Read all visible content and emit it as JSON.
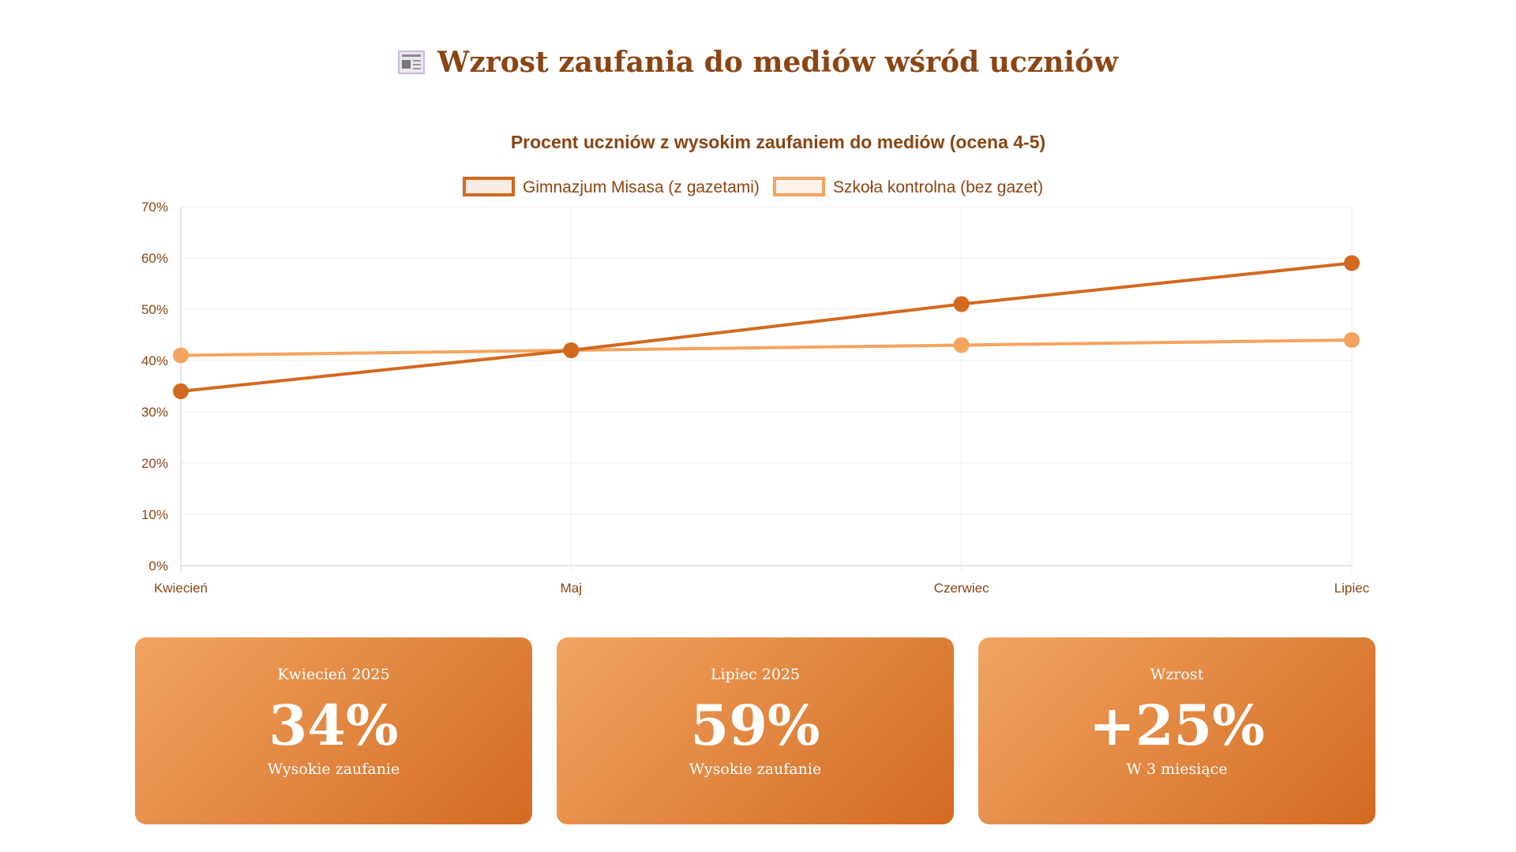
{
  "header": {
    "icon": "newspaper-icon",
    "title": "Wzrost zaufania do mediów wśród uczniów"
  },
  "chart_data": {
    "type": "line",
    "title": "Procent uczniów z wysokim zaufaniem do mediów (ocena 4-5)",
    "categories": [
      "Kwiecień",
      "Maj",
      "Czerwiec",
      "Lipiec"
    ],
    "series": [
      {
        "name": "Gimnazjum Misasa (z gazetami)",
        "values": [
          34,
          42,
          51,
          59
        ],
        "color": "#d2691e"
      },
      {
        "name": "Szkoła kontrolna (bez gazet)",
        "values": [
          41,
          42,
          43,
          44
        ],
        "color": "#f4a460"
      }
    ],
    "ylim": [
      0,
      70
    ],
    "yticks": [
      "0%",
      "10%",
      "20%",
      "30%",
      "40%",
      "50%",
      "60%",
      "70%"
    ],
    "legend": "top",
    "grid": true
  },
  "cards": [
    {
      "label": "Kwiecień 2025",
      "value": "34%",
      "sub": "Wysokie zaufanie"
    },
    {
      "label": "Lipiec 2025",
      "value": "59%",
      "sub": "Wysokie zaufanie"
    },
    {
      "label": "Wzrost",
      "value": "+25%",
      "sub": "W 3 miesiące"
    }
  ]
}
